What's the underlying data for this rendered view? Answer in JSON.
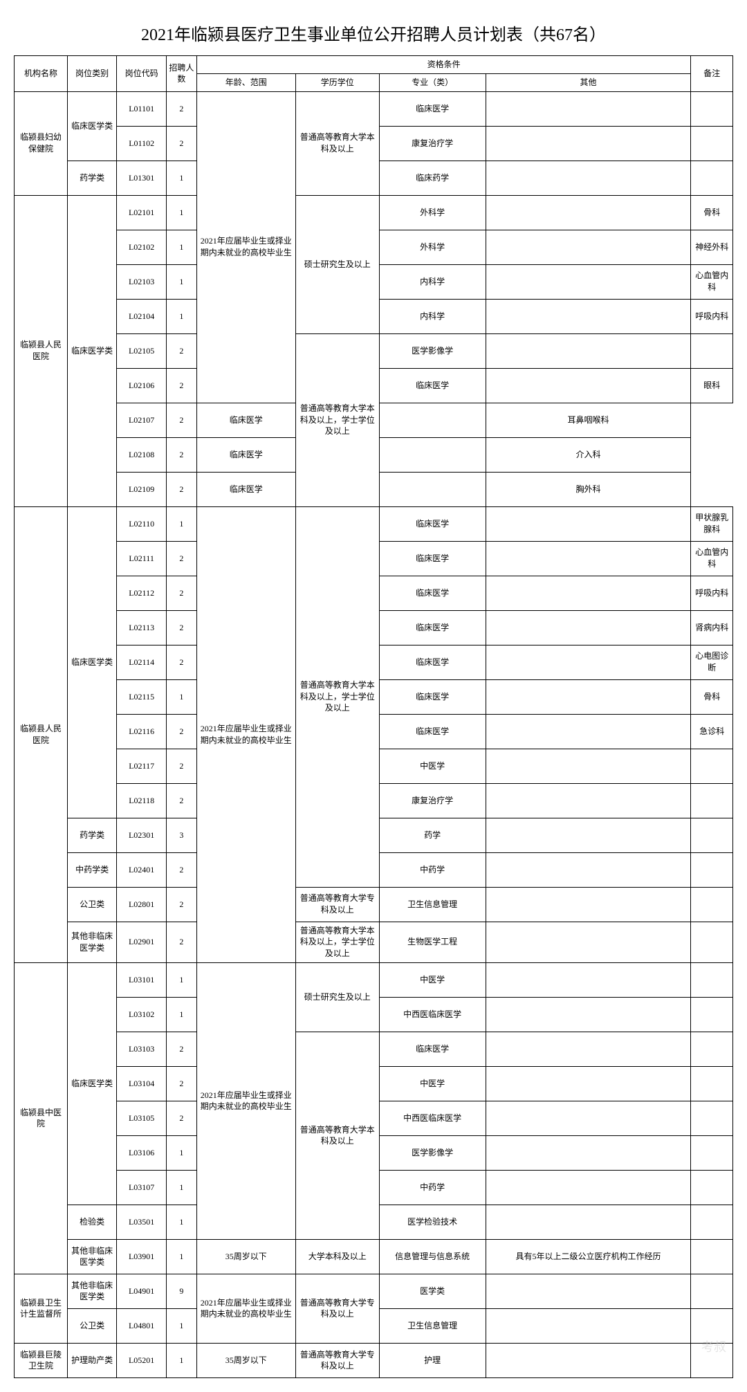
{
  "title": "2021年临颍县医疗卫生事业单位公开招聘人员计划表（共67名）",
  "headers": {
    "org": "机构名称",
    "category": "岗位类别",
    "code": "岗位代码",
    "num": "招聘人数",
    "qual": "资格条件",
    "age": "年龄、范围",
    "edu": "学历学位",
    "major": "专业（类）",
    "other": "其他",
    "note": "备注"
  },
  "watermark": "考叔",
  "edu_levels": {
    "bk": "普通高等教育大学本科及以上",
    "ss": "硕士研究生及以上",
    "bkxw": "普通高等教育大学本科及以上，学士学位及以上",
    "zk": "普通高等教育大学专科及以上",
    "bk2": "大学本科及以上"
  },
  "age_ranges": {
    "grad": "2021年应届毕业生或择业期内未就业的高校毕业生",
    "age35": "35周岁以下"
  },
  "orgs": [
    {
      "name": "临颍县妇幼保健院",
      "rows": [
        {
          "cat": "临床医学类",
          "cat_span": 2,
          "code": "L01101",
          "num": "2",
          "age": "grad",
          "age_span": 9,
          "edu": "bk",
          "edu_span": 3,
          "major": "临床医学",
          "other": "",
          "note": ""
        },
        {
          "code": "L01102",
          "num": "2",
          "major": "康复治疗学",
          "other": "",
          "note": ""
        },
        {
          "cat": "药学类",
          "code": "L01301",
          "num": "1",
          "major": "临床药学",
          "other": "",
          "note": ""
        }
      ]
    },
    {
      "name": "临颍县人民医院",
      "rows": [
        {
          "cat": "临床医学类",
          "cat_span": 9,
          "code": "L02101",
          "num": "1",
          "edu": "ss",
          "edu_span": 4,
          "major": "外科学",
          "other": "",
          "note": "骨科"
        },
        {
          "code": "L02102",
          "num": "1",
          "major": "外科学",
          "other": "",
          "note": "神经外科"
        },
        {
          "code": "L02103",
          "num": "1",
          "major": "内科学",
          "other": "",
          "note": "心血管内科"
        },
        {
          "code": "L02104",
          "num": "1",
          "major": "内科学",
          "other": "",
          "note": "呼吸内科"
        },
        {
          "code": "L02105",
          "num": "2",
          "edu": "bkxw",
          "edu_span": 5,
          "major": "医学影像学",
          "other": "",
          "note": ""
        },
        {
          "code": "L02106",
          "num": "2",
          "major": "临床医学",
          "other": "",
          "note": "眼科"
        },
        {
          "code": "L02107",
          "num": "2",
          "major": "临床医学",
          "other": "",
          "note": "耳鼻咽喉科"
        },
        {
          "code": "L02108",
          "num": "2",
          "major": "临床医学",
          "other": "",
          "note": "介入科"
        },
        {
          "code": "L02109",
          "num": "2",
          "major": "临床医学",
          "other": "",
          "note": "胸外科"
        }
      ]
    },
    {
      "name": "临颍县人民医院",
      "rows": [
        {
          "cat": "临床医学类",
          "cat_span": 9,
          "code": "L02110",
          "num": "1",
          "age": "grad",
          "age_span": 13,
          "edu": "bkxw",
          "edu_span": 11,
          "major": "临床医学",
          "other": "",
          "note": "甲状腺乳腺科"
        },
        {
          "code": "L02111",
          "num": "2",
          "major": "临床医学",
          "other": "",
          "note": "心血管内科"
        },
        {
          "code": "L02112",
          "num": "2",
          "major": "临床医学",
          "other": "",
          "note": "呼吸内科"
        },
        {
          "code": "L02113",
          "num": "2",
          "major": "临床医学",
          "other": "",
          "note": "肾病内科"
        },
        {
          "code": "L02114",
          "num": "2",
          "major": "临床医学",
          "other": "",
          "note": "心电图诊断"
        },
        {
          "code": "L02115",
          "num": "1",
          "major": "临床医学",
          "other": "",
          "note": "骨科"
        },
        {
          "code": "L02116",
          "num": "2",
          "major": "临床医学",
          "other": "",
          "note": "急诊科"
        },
        {
          "code": "L02117",
          "num": "2",
          "major": "中医学",
          "other": "",
          "note": ""
        },
        {
          "code": "L02118",
          "num": "2",
          "major": "康复治疗学",
          "other": "",
          "note": ""
        },
        {
          "cat": "药学类",
          "code": "L02301",
          "num": "3",
          "major": "药学",
          "other": "",
          "note": ""
        },
        {
          "cat": "中药学类",
          "code": "L02401",
          "num": "2",
          "major": "中药学",
          "other": "",
          "note": ""
        },
        {
          "cat": "公卫类",
          "code": "L02801",
          "num": "2",
          "edu": "zk",
          "major": "卫生信息管理",
          "other": "",
          "note": ""
        },
        {
          "cat": "其他非临床医学类",
          "code": "L02901",
          "num": "2",
          "edu": "bkxw",
          "major": "生物医学工程",
          "other": "",
          "note": ""
        }
      ]
    },
    {
      "name": "临颍县中医院",
      "rows": [
        {
          "cat": "临床医学类",
          "cat_span": 7,
          "code": "L03101",
          "num": "1",
          "age": "grad",
          "age_span": 8,
          "edu": "ss",
          "edu_span": 2,
          "major": "中医学",
          "other": "",
          "note": ""
        },
        {
          "code": "L03102",
          "num": "1",
          "major": "中西医临床医学",
          "other": "",
          "note": ""
        },
        {
          "code": "L03103",
          "num": "2",
          "edu": "bk",
          "edu_span": 6,
          "major": "临床医学",
          "other": "",
          "note": ""
        },
        {
          "code": "L03104",
          "num": "2",
          "major": "中医学",
          "other": "",
          "note": ""
        },
        {
          "code": "L03105",
          "num": "2",
          "major": "中西医临床医学",
          "other": "",
          "note": ""
        },
        {
          "code": "L03106",
          "num": "1",
          "major": "医学影像学",
          "other": "",
          "note": ""
        },
        {
          "code": "L03107",
          "num": "1",
          "major": "中药学",
          "other": "",
          "note": ""
        },
        {
          "cat": "检验类",
          "code": "L03501",
          "num": "1",
          "major": "医学检验技术",
          "other": "",
          "note": ""
        },
        {
          "cat": "其他非临床医学类",
          "code": "L03901",
          "num": "1",
          "age": "age35",
          "edu": "bk2",
          "major": "信息管理与信息系统",
          "other": "具有5年以上二级公立医疗机构工作经历",
          "note": ""
        }
      ]
    },
    {
      "name": "临颍县卫生计生监督所",
      "rows": [
        {
          "cat": "其他非临床医学类",
          "code": "L04901",
          "num": "9",
          "age": "grad",
          "age_span": 2,
          "edu": "zk",
          "edu_span": 2,
          "major": "医学类",
          "other": "",
          "note": ""
        },
        {
          "cat": "公卫类",
          "code": "L04801",
          "num": "1",
          "major": "卫生信息管理",
          "other": "",
          "note": ""
        }
      ]
    },
    {
      "name": "临颍县巨陵卫生院",
      "rows": [
        {
          "cat": "护理助产类",
          "code": "L05201",
          "num": "1",
          "age": "age35",
          "edu": "zk",
          "major": "护理",
          "other": "",
          "note": ""
        }
      ]
    }
  ]
}
